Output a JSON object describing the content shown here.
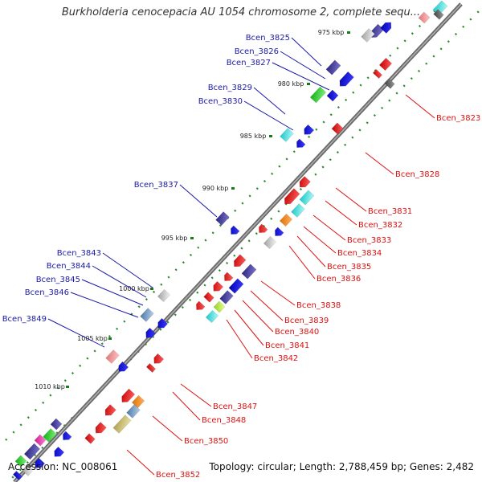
{
  "title": "Burkholderia cenocepacia AU 1054 chromosome 2, complete sequ...",
  "footer": {
    "accession": "Accession: NC_008061",
    "summary": "Topology: circular; Length: 2,788,459 bp; Genes: 2,482"
  },
  "ticks": [
    "975 kbp",
    "980 kbp",
    "985 kbp",
    "990 kbp",
    "995 kbp",
    "1000 kbp",
    "1005 kbp",
    "1010 kbp"
  ],
  "genes_left": [
    "Bcen_3825",
    "Bcen_3826",
    "Bcen_3827",
    "Bcen_3829",
    "Bcen_3830",
    "Bcen_3837",
    "Bcen_3843",
    "Bcen_3844",
    "Bcen_3845",
    "Bcen_3846",
    "Bcen_3849"
  ],
  "genes_right": [
    "Bcen_3823",
    "Bcen_3828",
    "Bcen_3831",
    "Bcen_3832",
    "Bcen_3833",
    "Bcen_3834",
    "Bcen_3835",
    "Bcen_3836",
    "Bcen_3838",
    "Bcen_3839",
    "Bcen_3840",
    "Bcen_3841",
    "Bcen_3842",
    "Bcen_3847",
    "Bcen_3848",
    "Bcen_3850",
    "Bcen_3852"
  ],
  "colors": {
    "left_label": "#1a1aa6",
    "right_label": "#dd1111",
    "backbone": "#8c8c8c",
    "dots": "#2a8a2a"
  }
}
